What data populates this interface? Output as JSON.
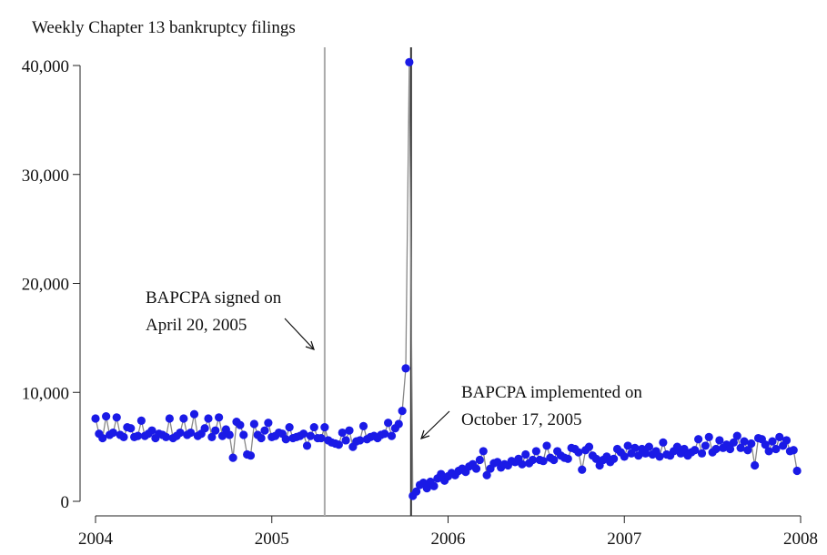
{
  "chart_data": {
    "type": "line",
    "title": "Weekly Chapter 13 bankruptcy filings",
    "xlim": [
      2004,
      2008
    ],
    "xticks": [
      2004,
      2005,
      2006,
      2007,
      2008
    ],
    "ylim": [
      0,
      40000
    ],
    "yticks": [
      0,
      {
        "value": 10000,
        "label": "10,000"
      },
      {
        "value": 20000,
        "label": "20,000"
      },
      {
        "value": 30000,
        "label": "30,000"
      },
      {
        "value": 40000,
        "label": "40,000"
      }
    ],
    "line_color": "#888888",
    "marker_color": "#1a1ae6",
    "vlines": [
      {
        "x": 2005.3,
        "color": "#aaaaaa"
      },
      {
        "x": 2005.79,
        "color": "#333333"
      }
    ],
    "annotations": [
      {
        "lines": [
          "BAPCPA signed on",
          "April 20, 2005"
        ]
      },
      {
        "lines": [
          "BAPCPA implemented on",
          "October 17, 2005"
        ]
      }
    ],
    "x": [
      2004.0,
      2004.02,
      2004.04,
      2004.06,
      2004.08,
      2004.1,
      2004.12,
      2004.14,
      2004.16,
      2004.18,
      2004.2,
      2004.22,
      2004.24,
      2004.26,
      2004.28,
      2004.3,
      2004.32,
      2004.34,
      2004.36,
      2004.38,
      2004.4,
      2004.42,
      2004.44,
      2004.46,
      2004.48,
      2004.5,
      2004.52,
      2004.54,
      2004.56,
      2004.58,
      2004.6,
      2004.62,
      2004.64,
      2004.66,
      2004.68,
      2004.7,
      2004.72,
      2004.74,
      2004.76,
      2004.78,
      2004.8,
      2004.82,
      2004.84,
      2004.86,
      2004.88,
      2004.9,
      2004.92,
      2004.94,
      2004.96,
      2004.98,
      2005.0,
      2005.02,
      2005.04,
      2005.06,
      2005.08,
      2005.1,
      2005.12,
      2005.14,
      2005.16,
      2005.18,
      2005.2,
      2005.22,
      2005.24,
      2005.26,
      2005.28,
      2005.3,
      2005.32,
      2005.34,
      2005.36,
      2005.38,
      2005.4,
      2005.42,
      2005.44,
      2005.46,
      2005.48,
      2005.5,
      2005.52,
      2005.54,
      2005.56,
      2005.58,
      2005.6,
      2005.62,
      2005.64,
      2005.66,
      2005.68,
      2005.7,
      2005.72,
      2005.74,
      2005.76,
      2005.78,
      2005.8,
      2005.82,
      2005.84,
      2005.86,
      2005.88,
      2005.9,
      2005.92,
      2005.94,
      2005.96,
      2005.98,
      2006.0,
      2006.02,
      2006.04,
      2006.06,
      2006.08,
      2006.1,
      2006.12,
      2006.14,
      2006.16,
      2006.18,
      2006.2,
      2006.22,
      2006.24,
      2006.26,
      2006.28,
      2006.3,
      2006.32,
      2006.34,
      2006.36,
      2006.38,
      2006.4,
      2006.42,
      2006.44,
      2006.46,
      2006.48,
      2006.5,
      2006.52,
      2006.54,
      2006.56,
      2006.58,
      2006.6,
      2006.62,
      2006.64,
      2006.66,
      2006.68,
      2006.7,
      2006.72,
      2006.74,
      2006.76,
      2006.78,
      2006.8,
      2006.82,
      2006.84,
      2006.86,
      2006.88,
      2006.9,
      2006.92,
      2006.94,
      2006.96,
      2006.98,
      2007.0,
      2007.02,
      2007.04,
      2007.06,
      2007.08,
      2007.1,
      2007.12,
      2007.14,
      2007.16,
      2007.18,
      2007.2,
      2007.22,
      2007.24,
      2007.26,
      2007.28,
      2007.3,
      2007.32,
      2007.34,
      2007.36,
      2007.38,
      2007.4,
      2007.42,
      2007.44,
      2007.46,
      2007.48,
      2007.5,
      2007.52,
      2007.54,
      2007.56,
      2007.58,
      2007.6,
      2007.62,
      2007.64,
      2007.66,
      2007.68,
      2007.7,
      2007.72,
      2007.74,
      2007.76,
      2007.78,
      2007.8,
      2007.82,
      2007.84,
      2007.86,
      2007.88,
      2007.9,
      2007.92,
      2007.94,
      2007.96,
      2007.98
    ],
    "values": [
      7600,
      6200,
      5800,
      7800,
      6100,
      6300,
      7700,
      6100,
      5900,
      6800,
      6700,
      5900,
      6000,
      7400,
      6000,
      6200,
      6500,
      5800,
      6200,
      6100,
      5900,
      7600,
      5800,
      6000,
      6300,
      7600,
      6100,
      6300,
      8000,
      6000,
      6200,
      6700,
      7600,
      5900,
      6500,
      7700,
      6000,
      6600,
      6100,
      4000,
      7300,
      7000,
      6100,
      4300,
      4200,
      7100,
      6100,
      5800,
      6500,
      7200,
      5900,
      6000,
      6300,
      6200,
      5700,
      6800,
      5800,
      5900,
      6000,
      6200,
      5100,
      6000,
      6800,
      5800,
      5800,
      6800,
      5600,
      5400,
      5300,
      5200,
      6300,
      5600,
      6500,
      5000,
      5500,
      5600,
      6900,
      5700,
      5900,
      6000,
      5800,
      6100,
      6200,
      7200,
      6000,
      6700,
      7100,
      8300,
      12200,
      40300,
      500,
      900,
      1500,
      1700,
      1200,
      1800,
      1400,
      2100,
      2500,
      1900,
      2300,
      2600,
      2400,
      2800,
      3000,
      2700,
      3200,
      3400,
      3000,
      3800,
      4600,
      2400,
      3000,
      3500,
      3600,
      3100,
      3400,
      3300,
      3700,
      3600,
      3900,
      3400,
      4300,
      3500,
      3800,
      4600,
      3800,
      3700,
      5100,
      4000,
      3800,
      4600,
      4200,
      4000,
      3900,
      4900,
      4800,
      4500,
      2900,
      4700,
      5000,
      4200,
      3900,
      3300,
      3800,
      4100,
      3600,
      3900,
      4800,
      4500,
      4100,
      5100,
      4400,
      4900,
      4200,
      4800,
      4400,
      5000,
      4300,
      4600,
      4100,
      5400,
      4300,
      4200,
      4600,
      5000,
      4400,
      4800,
      4200,
      4500,
      4700,
      5700,
      4400,
      5100,
      5900,
      4500,
      4800,
      5600,
      4900,
      5200,
      4800,
      5400,
      6000,
      4900,
      5500,
      4700,
      5300,
      3300,
      5800,
      5700,
      5200,
      4600,
      5500,
      4800,
      5900,
      5100,
      5600,
      4600,
      4700,
      2800
    ]
  }
}
